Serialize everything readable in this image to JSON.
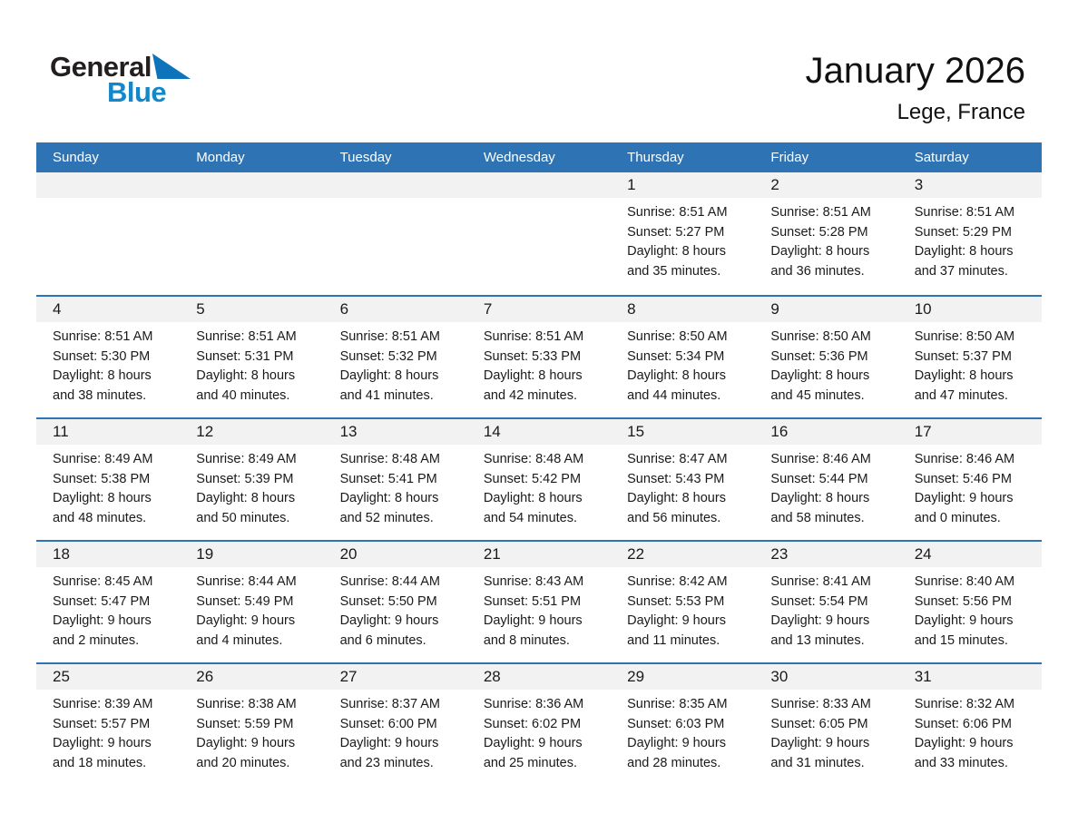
{
  "logo": {
    "word_top": "General",
    "word_bottom": "Blue"
  },
  "title": {
    "month_year": "January 2026",
    "location": "Lege, France"
  },
  "colors": {
    "header_blue": "#2E74B5",
    "accent_blue": "#2E74B5",
    "strip_gray": "#F2F2F2",
    "logo_black": "#231F20",
    "logo_blue": "#1287C9",
    "logo_triangle_blue": "#0D74BC"
  },
  "weekdays": [
    "Sunday",
    "Monday",
    "Tuesday",
    "Wednesday",
    "Thursday",
    "Friday",
    "Saturday"
  ],
  "weeks": [
    [
      null,
      null,
      null,
      null,
      {
        "day": "1",
        "sunrise": "Sunrise: 8:51 AM",
        "sunset": "Sunset: 5:27 PM",
        "daylight": "Daylight: 8 hours and 35 minutes."
      },
      {
        "day": "2",
        "sunrise": "Sunrise: 8:51 AM",
        "sunset": "Sunset: 5:28 PM",
        "daylight": "Daylight: 8 hours and 36 minutes."
      },
      {
        "day": "3",
        "sunrise": "Sunrise: 8:51 AM",
        "sunset": "Sunset: 5:29 PM",
        "daylight": "Daylight: 8 hours and 37 minutes."
      }
    ],
    [
      {
        "day": "4",
        "sunrise": "Sunrise: 8:51 AM",
        "sunset": "Sunset: 5:30 PM",
        "daylight": "Daylight: 8 hours and 38 minutes."
      },
      {
        "day": "5",
        "sunrise": "Sunrise: 8:51 AM",
        "sunset": "Sunset: 5:31 PM",
        "daylight": "Daylight: 8 hours and 40 minutes."
      },
      {
        "day": "6",
        "sunrise": "Sunrise: 8:51 AM",
        "sunset": "Sunset: 5:32 PM",
        "daylight": "Daylight: 8 hours and 41 minutes."
      },
      {
        "day": "7",
        "sunrise": "Sunrise: 8:51 AM",
        "sunset": "Sunset: 5:33 PM",
        "daylight": "Daylight: 8 hours and 42 minutes."
      },
      {
        "day": "8",
        "sunrise": "Sunrise: 8:50 AM",
        "sunset": "Sunset: 5:34 PM",
        "daylight": "Daylight: 8 hours and 44 minutes."
      },
      {
        "day": "9",
        "sunrise": "Sunrise: 8:50 AM",
        "sunset": "Sunset: 5:36 PM",
        "daylight": "Daylight: 8 hours and 45 minutes."
      },
      {
        "day": "10",
        "sunrise": "Sunrise: 8:50 AM",
        "sunset": "Sunset: 5:37 PM",
        "daylight": "Daylight: 8 hours and 47 minutes."
      }
    ],
    [
      {
        "day": "11",
        "sunrise": "Sunrise: 8:49 AM",
        "sunset": "Sunset: 5:38 PM",
        "daylight": "Daylight: 8 hours and 48 minutes."
      },
      {
        "day": "12",
        "sunrise": "Sunrise: 8:49 AM",
        "sunset": "Sunset: 5:39 PM",
        "daylight": "Daylight: 8 hours and 50 minutes."
      },
      {
        "day": "13",
        "sunrise": "Sunrise: 8:48 AM",
        "sunset": "Sunset: 5:41 PM",
        "daylight": "Daylight: 8 hours and 52 minutes."
      },
      {
        "day": "14",
        "sunrise": "Sunrise: 8:48 AM",
        "sunset": "Sunset: 5:42 PM",
        "daylight": "Daylight: 8 hours and 54 minutes."
      },
      {
        "day": "15",
        "sunrise": "Sunrise: 8:47 AM",
        "sunset": "Sunset: 5:43 PM",
        "daylight": "Daylight: 8 hours and 56 minutes."
      },
      {
        "day": "16",
        "sunrise": "Sunrise: 8:46 AM",
        "sunset": "Sunset: 5:44 PM",
        "daylight": "Daylight: 8 hours and 58 minutes."
      },
      {
        "day": "17",
        "sunrise": "Sunrise: 8:46 AM",
        "sunset": "Sunset: 5:46 PM",
        "daylight": "Daylight: 9 hours and 0 minutes."
      }
    ],
    [
      {
        "day": "18",
        "sunrise": "Sunrise: 8:45 AM",
        "sunset": "Sunset: 5:47 PM",
        "daylight": "Daylight: 9 hours and 2 minutes."
      },
      {
        "day": "19",
        "sunrise": "Sunrise: 8:44 AM",
        "sunset": "Sunset: 5:49 PM",
        "daylight": "Daylight: 9 hours and 4 minutes."
      },
      {
        "day": "20",
        "sunrise": "Sunrise: 8:44 AM",
        "sunset": "Sunset: 5:50 PM",
        "daylight": "Daylight: 9 hours and 6 minutes."
      },
      {
        "day": "21",
        "sunrise": "Sunrise: 8:43 AM",
        "sunset": "Sunset: 5:51 PM",
        "daylight": "Daylight: 9 hours and 8 minutes."
      },
      {
        "day": "22",
        "sunrise": "Sunrise: 8:42 AM",
        "sunset": "Sunset: 5:53 PM",
        "daylight": "Daylight: 9 hours and 11 minutes."
      },
      {
        "day": "23",
        "sunrise": "Sunrise: 8:41 AM",
        "sunset": "Sunset: 5:54 PM",
        "daylight": "Daylight: 9 hours and 13 minutes."
      },
      {
        "day": "24",
        "sunrise": "Sunrise: 8:40 AM",
        "sunset": "Sunset: 5:56 PM",
        "daylight": "Daylight: 9 hours and 15 minutes."
      }
    ],
    [
      {
        "day": "25",
        "sunrise": "Sunrise: 8:39 AM",
        "sunset": "Sunset: 5:57 PM",
        "daylight": "Daylight: 9 hours and 18 minutes."
      },
      {
        "day": "26",
        "sunrise": "Sunrise: 8:38 AM",
        "sunset": "Sunset: 5:59 PM",
        "daylight": "Daylight: 9 hours and 20 minutes."
      },
      {
        "day": "27",
        "sunrise": "Sunrise: 8:37 AM",
        "sunset": "Sunset: 6:00 PM",
        "daylight": "Daylight: 9 hours and 23 minutes."
      },
      {
        "day": "28",
        "sunrise": "Sunrise: 8:36 AM",
        "sunset": "Sunset: 6:02 PM",
        "daylight": "Daylight: 9 hours and 25 minutes."
      },
      {
        "day": "29",
        "sunrise": "Sunrise: 8:35 AM",
        "sunset": "Sunset: 6:03 PM",
        "daylight": "Daylight: 9 hours and 28 minutes."
      },
      {
        "day": "30",
        "sunrise": "Sunrise: 8:33 AM",
        "sunset": "Sunset: 6:05 PM",
        "daylight": "Daylight: 9 hours and 31 minutes."
      },
      {
        "day": "31",
        "sunrise": "Sunrise: 8:32 AM",
        "sunset": "Sunset: 6:06 PM",
        "daylight": "Daylight: 9 hours and 33 minutes."
      }
    ]
  ]
}
